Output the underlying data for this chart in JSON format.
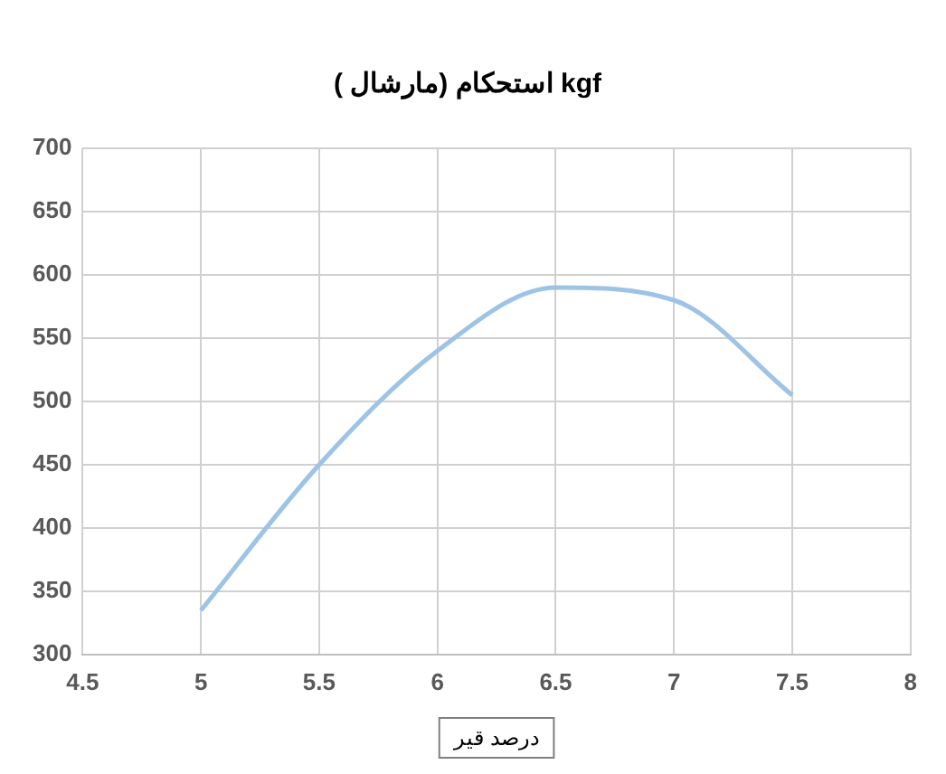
{
  "chart_data": {
    "type": "line",
    "title": "استحکام (مارشال ) kgf",
    "xlabel": "درصد قیر",
    "x": [
      5,
      5.5,
      6,
      6.5,
      7,
      7.5
    ],
    "series": [
      {
        "color": "#9dc3e6",
        "values": [
          335,
          450,
          540,
          590,
          580,
          505
        ]
      }
    ],
    "xlim": [
      4.5,
      8
    ],
    "xticks": [
      4.5,
      5,
      5.5,
      6,
      6.5,
      7,
      7.5,
      8
    ],
    "ylim": [
      300,
      700
    ],
    "yticks": [
      300,
      350,
      400,
      450,
      500,
      550,
      600,
      650,
      700
    ],
    "grid": true,
    "legend": false,
    "marker": "none",
    "line_style": "solid"
  }
}
